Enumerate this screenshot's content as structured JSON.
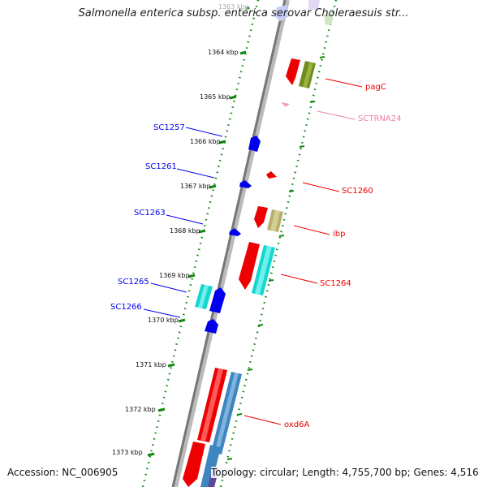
{
  "title": "Salmonella enterica subsp. enterica serovar Choleraesuis str...",
  "footer": {
    "accession": "Accession: NC_006905",
    "summary": "Topology: circular; Length: 4,755,700 bp; Genes: 4,516"
  },
  "ticks": [
    "1363 kbp",
    "1364 kbp",
    "1365 kbp",
    "1366 kbp",
    "1367 kbp",
    "1368 kbp",
    "1369 kbp",
    "1370 kbp",
    "1371 kbp",
    "1372 kbp",
    "1373 kbp"
  ],
  "genes": [
    {
      "name": "SC1257",
      "strand": "left",
      "color": "#0000ee"
    },
    {
      "name": "SC1261",
      "strand": "left",
      "color": "#0000ee"
    },
    {
      "name": "SC1263",
      "strand": "left",
      "color": "#0000ee"
    },
    {
      "name": "SC1265",
      "strand": "left",
      "color": "#0000ee"
    },
    {
      "name": "SC1266",
      "strand": "left",
      "color": "#0000ee"
    },
    {
      "name": "pagC",
      "strand": "right",
      "color": "#ee0000"
    },
    {
      "name": "SCTRNA24",
      "strand": "right",
      "color": "#f080a8"
    },
    {
      "name": "SC1260",
      "strand": "right",
      "color": "#ee0000"
    },
    {
      "name": "ibp",
      "strand": "right",
      "color": "#ee0000"
    },
    {
      "name": "SC1264",
      "strand": "right",
      "color": "#ee0000"
    },
    {
      "name": "oxd6A",
      "strand": "right",
      "color": "#ee0000"
    }
  ]
}
